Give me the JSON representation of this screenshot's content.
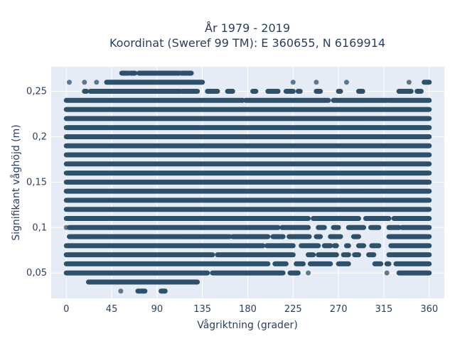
{
  "chart_data": {
    "type": "scatter",
    "title_line1": "År 1979 - 2019",
    "title_line2": "Koordinat (Sweref 99 TM): E 360655, N 6169914",
    "xlabel": "Vågriktning (grader)",
    "ylabel": "Signifikant våghöjd (m)",
    "xlim": [
      -15,
      375
    ],
    "ylim": [
      0.022,
      0.277
    ],
    "x_ticks": [
      0,
      45,
      90,
      135,
      180,
      225,
      270,
      315,
      360
    ],
    "x_tick_labels": [
      "0",
      "45",
      "90",
      "135",
      "180",
      "225",
      "270",
      "315",
      "360"
    ],
    "y_ticks": [
      0.05,
      0.1,
      0.15,
      0.2,
      0.25
    ],
    "y_tick_labels": [
      "0,05",
      "0,1",
      "0,15",
      "0,2",
      "0,25"
    ],
    "grid": true,
    "marker_color": "#2f5069",
    "plot_background": "#e5ecf6",
    "series": [
      {
        "bands": [
          {
            "y": 0.27,
            "segments": [
              [
                55,
                62
              ],
              [
                64,
                68
              ],
              [
                72,
                112
              ],
              [
                114,
                124
              ]
            ]
          },
          {
            "y": 0.26,
            "segments": [
              [
                3,
                3
              ],
              [
                18,
                18
              ],
              [
                30,
                30
              ],
              [
                40,
                135
              ],
              [
                225,
                225
              ],
              [
                248,
                248
              ],
              [
                278,
                278
              ],
              [
                340,
                340
              ],
              [
                355,
                360
              ]
            ]
          },
          {
            "y": 0.25,
            "segments": [
              [
                18,
                20
              ],
              [
                24,
                113
              ],
              [
                115,
                130
              ],
              [
                140,
                150
              ],
              [
                160,
                165
              ],
              [
                185,
                188
              ],
              [
                200,
                210
              ],
              [
                218,
                225
              ],
              [
                230,
                232
              ],
              [
                248,
                252
              ],
              [
                270,
                272
              ],
              [
                290,
                294
              ],
              [
                330,
                342
              ],
              [
                348,
                352
              ]
            ]
          },
          {
            "y": 0.24,
            "segments": [
              [
                0,
                175
              ],
              [
                178,
                260
              ],
              [
                265,
                318
              ],
              [
                320,
                360
              ]
            ]
          },
          {
            "y": 0.23,
            "segments": [
              [
                0,
                360
              ]
            ]
          },
          {
            "y": 0.22,
            "segments": [
              [
                0,
                360
              ]
            ]
          },
          {
            "y": 0.21,
            "segments": [
              [
                0,
                360
              ]
            ]
          },
          {
            "y": 0.2,
            "segments": [
              [
                0,
                360
              ]
            ]
          },
          {
            "y": 0.19,
            "segments": [
              [
                0,
                360
              ]
            ]
          },
          {
            "y": 0.18,
            "segments": [
              [
                0,
                360
              ]
            ]
          },
          {
            "y": 0.17,
            "segments": [
              [
                0,
                360
              ]
            ]
          },
          {
            "y": 0.16,
            "segments": [
              [
                0,
                360
              ]
            ]
          },
          {
            "y": 0.15,
            "segments": [
              [
                0,
                360
              ]
            ]
          },
          {
            "y": 0.14,
            "segments": [
              [
                0,
                360
              ]
            ]
          },
          {
            "y": 0.13,
            "segments": [
              [
                0,
                360
              ]
            ]
          },
          {
            "y": 0.12,
            "segments": [
              [
                0,
                360
              ]
            ]
          },
          {
            "y": 0.11,
            "segments": [
              [
                0,
                240
              ],
              [
                245,
                290
              ],
              [
                297,
                320
              ],
              [
                325,
                360
              ]
            ]
          },
          {
            "y": 0.1,
            "segments": [
              [
                0,
                0
              ],
              [
                3,
                210
              ],
              [
                214,
                240
              ],
              [
                250,
                256
              ],
              [
                265,
                270
              ],
              [
                280,
                295
              ],
              [
                302,
                310
              ],
              [
                320,
                330
              ],
              [
                333,
                360
              ]
            ]
          },
          {
            "y": 0.09,
            "segments": [
              [
                3,
                162
              ],
              [
                165,
                200
              ],
              [
                205,
                215
              ],
              [
                221,
                241
              ],
              [
                248,
                252
              ],
              [
                262,
                272
              ],
              [
                285,
                290
              ],
              [
                320,
                360
              ]
            ]
          },
          {
            "y": 0.08,
            "segments": [
              [
                0,
                195
              ],
              [
                199,
                225
              ],
              [
                233,
                250
              ],
              [
                256,
                262
              ],
              [
                266,
                268
              ],
              [
                278,
                280
              ],
              [
                290,
                295
              ],
              [
                303,
                310
              ],
              [
                322,
                360
              ]
            ]
          },
          {
            "y": 0.07,
            "segments": [
              [
                0,
                145
              ],
              [
                150,
                225
              ],
              [
                240,
                245
              ],
              [
                250,
                268
              ],
              [
                275,
                280
              ],
              [
                286,
                290
              ],
              [
                300,
                305
              ],
              [
                320,
                360
              ]
            ]
          },
          {
            "y": 0.06,
            "segments": [
              [
                0,
                200
              ],
              [
                207,
                218
              ],
              [
                228,
                235
              ],
              [
                242,
                262
              ],
              [
                270,
                280
              ],
              [
                306,
                312
              ],
              [
                318,
                320
              ],
              [
                327,
                360
              ]
            ]
          },
          {
            "y": 0.05,
            "segments": [
              [
                0,
                140
              ],
              [
                145,
                215
              ],
              [
                222,
                230
              ],
              [
                240,
                240
              ],
              [
                318,
                318
              ],
              [
                330,
                360
              ]
            ]
          },
          {
            "y": 0.04,
            "segments": [
              [
                22,
                130
              ]
            ]
          },
          {
            "y": 0.03,
            "segments": [
              [
                54,
                54
              ],
              [
                71,
                78
              ],
              [
                94,
                98
              ]
            ]
          }
        ]
      }
    ]
  }
}
